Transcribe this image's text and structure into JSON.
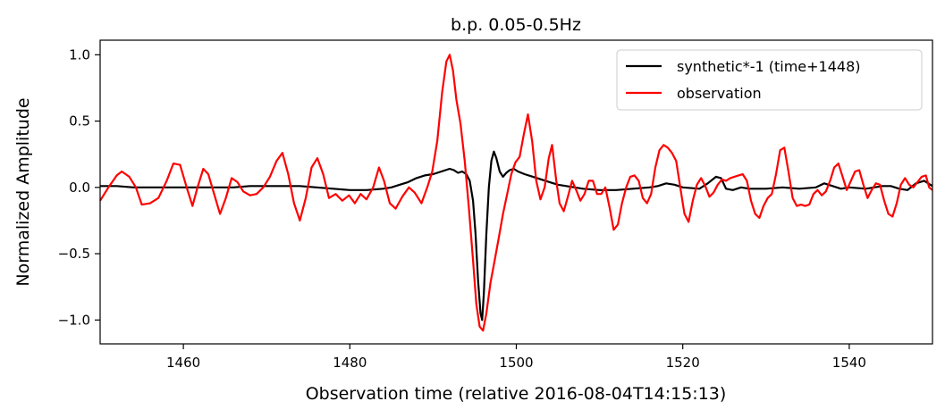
{
  "chart_data": {
    "type": "line",
    "title": "b.p. 0.05-0.5Hz",
    "xlabel": "Observation time (relative 2016-08-04T14:15:13)",
    "ylabel": "Normalized Amplitude",
    "xlim": [
      1450,
      1550
    ],
    "ylim": [
      -1.18,
      1.11
    ],
    "xticks": [
      1460,
      1480,
      1500,
      1520,
      1540
    ],
    "yticks": [
      1.0,
      0.5,
      0.0,
      -0.5,
      -1.0
    ],
    "xtick_labels": [
      "1460",
      "1480",
      "1500",
      "1520",
      "1540"
    ],
    "ytick_labels": [
      "1.0",
      "0.5",
      "0.0",
      "−0.5",
      "−1.0"
    ],
    "grid": false,
    "legend_position": "top-right",
    "series": [
      {
        "name": "synthetic*-1 (time+1448)",
        "color": "#000000",
        "points": [
          [
            1450,
            0.01
          ],
          [
            1452,
            0.01
          ],
          [
            1454,
            0.0
          ],
          [
            1456,
            0.0
          ],
          [
            1458,
            0.0
          ],
          [
            1460,
            0.0
          ],
          [
            1462,
            0.0
          ],
          [
            1464,
            0.0
          ],
          [
            1466,
            0.0
          ],
          [
            1468,
            0.01
          ],
          [
            1470,
            0.01
          ],
          [
            1472,
            0.01
          ],
          [
            1474,
            0.01
          ],
          [
            1476,
            0.0
          ],
          [
            1478,
            -0.01
          ],
          [
            1480,
            -0.02
          ],
          [
            1482,
            -0.02
          ],
          [
            1484,
            -0.01
          ],
          [
            1485,
            0.0
          ],
          [
            1486,
            0.02
          ],
          [
            1487,
            0.04
          ],
          [
            1488,
            0.07
          ],
          [
            1489,
            0.09
          ],
          [
            1490,
            0.1
          ],
          [
            1491,
            0.12
          ],
          [
            1492,
            0.14
          ],
          [
            1492.5,
            0.13
          ],
          [
            1493,
            0.11
          ],
          [
            1493.5,
            0.12
          ],
          [
            1494,
            0.1
          ],
          [
            1494.4,
            0.05
          ],
          [
            1494.8,
            -0.1
          ],
          [
            1495.1,
            -0.35
          ],
          [
            1495.4,
            -0.7
          ],
          [
            1495.7,
            -0.95
          ],
          [
            1495.9,
            -1.0
          ],
          [
            1496.1,
            -0.8
          ],
          [
            1496.4,
            -0.35
          ],
          [
            1496.7,
            0.0
          ],
          [
            1497,
            0.2
          ],
          [
            1497.3,
            0.27
          ],
          [
            1497.6,
            0.22
          ],
          [
            1498,
            0.12
          ],
          [
            1498.4,
            0.08
          ],
          [
            1498.8,
            0.11
          ],
          [
            1499.2,
            0.13
          ],
          [
            1499.7,
            0.14
          ],
          [
            1500.2,
            0.12
          ],
          [
            1501,
            0.1
          ],
          [
            1502,
            0.08
          ],
          [
            1503,
            0.06
          ],
          [
            1504,
            0.04
          ],
          [
            1505,
            0.02
          ],
          [
            1506,
            0.01
          ],
          [
            1508,
            -0.01
          ],
          [
            1510,
            -0.02
          ],
          [
            1512,
            -0.02
          ],
          [
            1514,
            -0.01
          ],
          [
            1516,
            0.0
          ],
          [
            1517,
            0.01
          ],
          [
            1518,
            0.03
          ],
          [
            1519,
            0.02
          ],
          [
            1520,
            0.0
          ],
          [
            1522,
            -0.01
          ],
          [
            1523,
            0.03
          ],
          [
            1524,
            0.08
          ],
          [
            1524.6,
            0.07
          ],
          [
            1525.2,
            -0.01
          ],
          [
            1526,
            -0.02
          ],
          [
            1527,
            0.0
          ],
          [
            1528,
            -0.01
          ],
          [
            1530,
            -0.01
          ],
          [
            1532,
            0.0
          ],
          [
            1534,
            -0.01
          ],
          [
            1536,
            0.0
          ],
          [
            1537,
            0.03
          ],
          [
            1538,
            0.01
          ],
          [
            1539,
            -0.01
          ],
          [
            1540,
            0.0
          ],
          [
            1542,
            -0.01
          ],
          [
            1544,
            0.01
          ],
          [
            1545,
            0.01
          ],
          [
            1546,
            -0.01
          ],
          [
            1547,
            -0.02
          ],
          [
            1548,
            0.03
          ],
          [
            1549,
            0.05
          ],
          [
            1550,
            0.01
          ]
        ]
      },
      {
        "name": "observation",
        "color": "#ff0000",
        "points": [
          [
            1450,
            -0.1
          ],
          [
            1451,
            0.0
          ],
          [
            1452,
            0.09
          ],
          [
            1452.6,
            0.12
          ],
          [
            1453.5,
            0.08
          ],
          [
            1454.3,
            0.0
          ],
          [
            1455,
            -0.13
          ],
          [
            1456,
            -0.12
          ],
          [
            1457,
            -0.08
          ],
          [
            1458,
            0.05
          ],
          [
            1458.8,
            0.18
          ],
          [
            1459.6,
            0.17
          ],
          [
            1460.4,
            0.0
          ],
          [
            1461.1,
            -0.14
          ],
          [
            1461.7,
            0.0
          ],
          [
            1462.4,
            0.14
          ],
          [
            1463,
            0.1
          ],
          [
            1463.7,
            -0.05
          ],
          [
            1464.4,
            -0.2
          ],
          [
            1465.1,
            -0.08
          ],
          [
            1465.8,
            0.07
          ],
          [
            1466.5,
            0.04
          ],
          [
            1467.2,
            -0.03
          ],
          [
            1468,
            -0.06
          ],
          [
            1468.8,
            -0.05
          ],
          [
            1469.6,
            0.0
          ],
          [
            1470.4,
            0.08
          ],
          [
            1471.2,
            0.2
          ],
          [
            1471.9,
            0.26
          ],
          [
            1472.6,
            0.1
          ],
          [
            1473.3,
            -0.12
          ],
          [
            1474,
            -0.25
          ],
          [
            1474.7,
            -0.08
          ],
          [
            1475.4,
            0.15
          ],
          [
            1476.1,
            0.22
          ],
          [
            1476.8,
            0.1
          ],
          [
            1477.5,
            -0.08
          ],
          [
            1478.3,
            -0.05
          ],
          [
            1479.1,
            -0.1
          ],
          [
            1479.9,
            -0.06
          ],
          [
            1480.6,
            -0.12
          ],
          [
            1481.3,
            -0.05
          ],
          [
            1482,
            -0.09
          ],
          [
            1482.8,
            0.0
          ],
          [
            1483.5,
            0.15
          ],
          [
            1484.1,
            0.05
          ],
          [
            1484.8,
            -0.12
          ],
          [
            1485.5,
            -0.16
          ],
          [
            1486.3,
            -0.07
          ],
          [
            1487.1,
            0.0
          ],
          [
            1487.8,
            -0.04
          ],
          [
            1488.6,
            -0.12
          ],
          [
            1489.3,
            0.0
          ],
          [
            1489.9,
            0.12
          ],
          [
            1490.5,
            0.35
          ],
          [
            1491.1,
            0.72
          ],
          [
            1491.6,
            0.95
          ],
          [
            1492,
            1.0
          ],
          [
            1492.4,
            0.88
          ],
          [
            1492.8,
            0.66
          ],
          [
            1493.3,
            0.48
          ],
          [
            1493.8,
            0.2
          ],
          [
            1494.3,
            -0.15
          ],
          [
            1494.8,
            -0.55
          ],
          [
            1495.2,
            -0.88
          ],
          [
            1495.6,
            -1.05
          ],
          [
            1496,
            -1.08
          ],
          [
            1496.4,
            -0.95
          ],
          [
            1496.9,
            -0.72
          ],
          [
            1497.4,
            -0.55
          ],
          [
            1497.9,
            -0.38
          ],
          [
            1498.4,
            -0.2
          ],
          [
            1498.9,
            -0.05
          ],
          [
            1499.4,
            0.1
          ],
          [
            1499.9,
            0.19
          ],
          [
            1500.4,
            0.23
          ],
          [
            1500.9,
            0.4
          ],
          [
            1501.4,
            0.55
          ],
          [
            1501.9,
            0.35
          ],
          [
            1502.4,
            0.05
          ],
          [
            1502.9,
            -0.09
          ],
          [
            1503.4,
            0.0
          ],
          [
            1503.9,
            0.22
          ],
          [
            1504.3,
            0.32
          ],
          [
            1504.8,
            0.05
          ],
          [
            1505.2,
            -0.12
          ],
          [
            1505.7,
            -0.18
          ],
          [
            1506.2,
            -0.07
          ],
          [
            1506.7,
            0.05
          ],
          [
            1507.2,
            -0.02
          ],
          [
            1507.7,
            -0.1
          ],
          [
            1508.2,
            -0.05
          ],
          [
            1508.7,
            0.05
          ],
          [
            1509.2,
            0.05
          ],
          [
            1509.7,
            -0.05
          ],
          [
            1510.2,
            -0.05
          ],
          [
            1510.7,
            0.0
          ],
          [
            1511.2,
            -0.15
          ],
          [
            1511.7,
            -0.32
          ],
          [
            1512.2,
            -0.28
          ],
          [
            1512.7,
            -0.12
          ],
          [
            1513.2,
            0.0
          ],
          [
            1513.7,
            0.08
          ],
          [
            1514.2,
            0.09
          ],
          [
            1514.7,
            0.05
          ],
          [
            1515.2,
            -0.08
          ],
          [
            1515.7,
            -0.12
          ],
          [
            1516.2,
            -0.05
          ],
          [
            1516.7,
            0.15
          ],
          [
            1517.2,
            0.28
          ],
          [
            1517.7,
            0.32
          ],
          [
            1518.2,
            0.3
          ],
          [
            1518.7,
            0.26
          ],
          [
            1519.2,
            0.2
          ],
          [
            1519.7,
            0.0
          ],
          [
            1520.2,
            -0.2
          ],
          [
            1520.7,
            -0.26
          ],
          [
            1521.2,
            -0.1
          ],
          [
            1521.7,
            0.02
          ],
          [
            1522.2,
            0.07
          ],
          [
            1522.7,
            0.01
          ],
          [
            1523.2,
            -0.07
          ],
          [
            1523.7,
            -0.04
          ],
          [
            1524.2,
            0.02
          ],
          [
            1524.7,
            0.06
          ],
          [
            1525.2,
            0.05
          ],
          [
            1525.7,
            0.07
          ],
          [
            1526.2,
            0.08
          ],
          [
            1526.7,
            0.09
          ],
          [
            1527.2,
            0.1
          ],
          [
            1527.7,
            0.05
          ],
          [
            1528.2,
            -0.1
          ],
          [
            1528.7,
            -0.2
          ],
          [
            1529.2,
            -0.23
          ],
          [
            1529.7,
            -0.14
          ],
          [
            1530.2,
            -0.08
          ],
          [
            1530.7,
            -0.05
          ],
          [
            1531.2,
            0.1
          ],
          [
            1531.7,
            0.28
          ],
          [
            1532.2,
            0.3
          ],
          [
            1532.7,
            0.12
          ],
          [
            1533.2,
            -0.08
          ],
          [
            1533.7,
            -0.14
          ],
          [
            1534.2,
            -0.13
          ],
          [
            1534.7,
            -0.14
          ],
          [
            1535.2,
            -0.13
          ],
          [
            1535.7,
            -0.05
          ],
          [
            1536.2,
            -0.02
          ],
          [
            1536.7,
            -0.06
          ],
          [
            1537.2,
            -0.03
          ],
          [
            1537.7,
            0.05
          ],
          [
            1538.2,
            0.15
          ],
          [
            1538.7,
            0.18
          ],
          [
            1539.2,
            0.08
          ],
          [
            1539.7,
            -0.02
          ],
          [
            1540.2,
            0.05
          ],
          [
            1540.7,
            0.12
          ],
          [
            1541.2,
            0.13
          ],
          [
            1541.7,
            0.02
          ],
          [
            1542.2,
            -0.08
          ],
          [
            1542.7,
            -0.02
          ],
          [
            1543.2,
            0.03
          ],
          [
            1543.7,
            0.02
          ],
          [
            1544.2,
            -0.1
          ],
          [
            1544.7,
            -0.2
          ],
          [
            1545.2,
            -0.22
          ],
          [
            1545.7,
            -0.12
          ],
          [
            1546.2,
            0.02
          ],
          [
            1546.7,
            0.07
          ],
          [
            1547.2,
            0.02
          ],
          [
            1547.7,
            0.0
          ],
          [
            1548.2,
            0.04
          ],
          [
            1548.7,
            0.08
          ],
          [
            1549.2,
            0.09
          ],
          [
            1549.6,
            0.0
          ],
          [
            1550,
            -0.02
          ]
        ]
      }
    ]
  }
}
